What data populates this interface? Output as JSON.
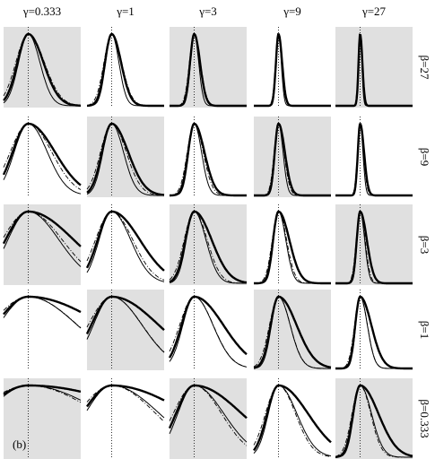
{
  "columns": [
    "γ=0.333",
    "γ=1",
    "γ=3",
    "γ=9",
    "γ=27"
  ],
  "rows": [
    "β=27",
    "β=9",
    "β=3",
    "β=1",
    "β=0.333"
  ],
  "panel_label": "(b)",
  "shaded": [
    [
      true,
      false,
      true,
      false,
      true
    ],
    [
      false,
      true,
      false,
      true,
      false
    ],
    [
      true,
      false,
      true,
      false,
      true
    ],
    [
      false,
      true,
      false,
      true,
      false
    ],
    [
      true,
      false,
      true,
      false,
      true
    ]
  ]
}
